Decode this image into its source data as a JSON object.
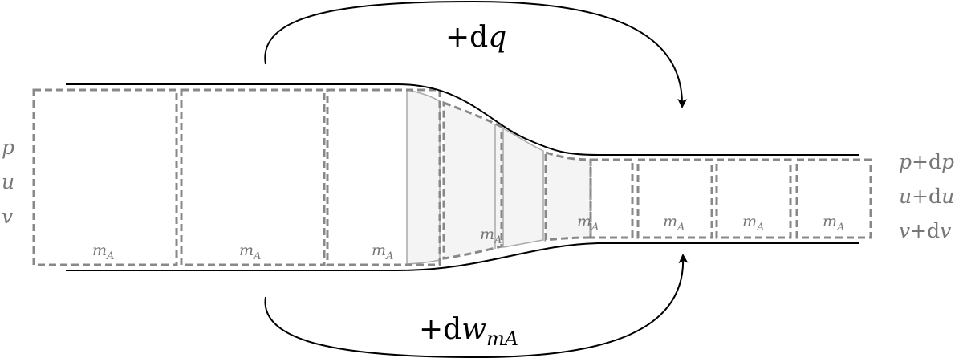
{
  "figure": {
    "description_colors": {
      "wall": "#000000",
      "parcel_border": "#888888",
      "parcel_fill": "#f2f2f2",
      "label_gray": "#777777",
      "arrow": "#000000"
    },
    "inlet_state": {
      "pressure": "p",
      "velocity": "u",
      "specific_volume": "v"
    },
    "outlet_state": {
      "pressure_prefix": "p",
      "pressure_delta": "+d",
      "pressure_suffix": "p",
      "velocity_prefix": "u",
      "velocity_delta": "+d",
      "velocity_suffix": "u",
      "volume_prefix": "v",
      "volume_delta": "+d",
      "volume_suffix": "v"
    },
    "heat_transfer": {
      "prefix": "+d",
      "symbol": "q"
    },
    "work_transfer": {
      "prefix": "+d",
      "symbol": "w",
      "subscript": "mA"
    },
    "mass_parcel": {
      "symbol": "m",
      "subscript": "A"
    }
  }
}
